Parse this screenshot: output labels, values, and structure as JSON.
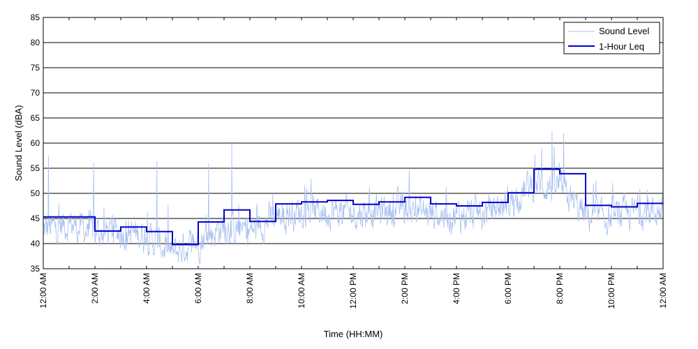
{
  "chart_data": {
    "type": "line",
    "title": "",
    "xlabel": "Time (HH:MM)",
    "ylabel": "Sound Level (dBA)",
    "ylim": [
      35,
      85
    ],
    "yticks": [
      35,
      40,
      45,
      50,
      55,
      60,
      65,
      70,
      75,
      80,
      85
    ],
    "xlim": [
      0,
      24
    ],
    "xtick_labels": [
      "12:00 AM",
      "2:00 AM",
      "4:00 AM",
      "6:00 AM",
      "8:00 AM",
      "10:00 AM",
      "12:00 PM",
      "2:00 PM",
      "4:00 PM",
      "6:00 PM",
      "8:00 PM",
      "10:00 PM",
      "12:00 AM"
    ],
    "xtick_hours": [
      0,
      2,
      4,
      6,
      8,
      10,
      12,
      14,
      16,
      18,
      20,
      22,
      24
    ],
    "grid": "horizontal",
    "legend_position": "top-right",
    "series": [
      {
        "name": "Sound Level",
        "color": "#a8c0f0",
        "style": "noisy",
        "hourly_mean": [
          42.5,
          44,
          42,
          42.5,
          41.5,
          38,
          40.5,
          43.5,
          42.5,
          45.5,
          46.5,
          46.5,
          46,
          46.5,
          47,
          46,
          45.5,
          46,
          48,
          52,
          51,
          45.5,
          45,
          46.5
        ],
        "peaks": [
          {
            "hour": 0.2,
            "value": 57.5
          },
          {
            "hour": 1.95,
            "value": 56
          },
          {
            "hour": 4.4,
            "value": 56.5
          },
          {
            "hour": 6.4,
            "value": 56
          },
          {
            "hour": 7.3,
            "value": 60
          },
          {
            "hour": 19.7,
            "value": 62.5
          },
          {
            "hour": 20.15,
            "value": 62
          },
          {
            "hour": 19.3,
            "value": 59
          }
        ]
      },
      {
        "name": "1-Hour Leq",
        "color": "#0000cc",
        "style": "step",
        "values": [
          45.3,
          45.3,
          42.5,
          43.3,
          42.4,
          39.8,
          44.3,
          46.7,
          44.4,
          47.9,
          48.3,
          48.6,
          47.8,
          48.3,
          49.2,
          47.9,
          47.5,
          48.2,
          50.1,
          54.8,
          53.9,
          47.6,
          47.3,
          48.0
        ]
      }
    ]
  }
}
